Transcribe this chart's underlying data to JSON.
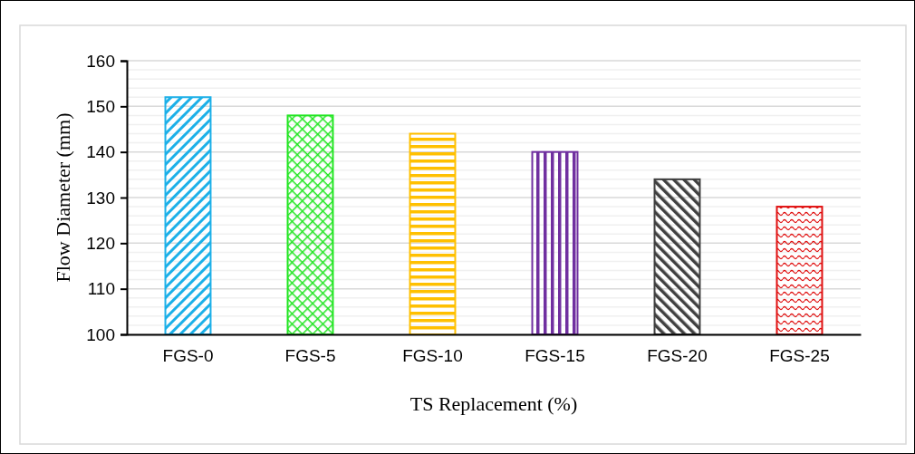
{
  "chart_data": {
    "type": "bar",
    "xlabel": "TS Replacement (%)",
    "ylabel": "Flow Diameter (mm)",
    "categories": [
      "FGS-0",
      "FGS-5",
      "FGS-10",
      "FGS-15",
      "FGS-20",
      "FGS-25"
    ],
    "values": [
      152,
      148,
      144,
      140,
      134,
      128
    ],
    "colors": [
      "#1cb0e8",
      "#22e622",
      "#ffc000",
      "#7030a0",
      "#404040",
      "#e01010"
    ],
    "ylim": [
      100,
      160
    ],
    "yticks": [
      100,
      {
        "value": 102,
        "label": null
      },
      {
        "value": 104,
        "label": null
      },
      {
        "value": 106,
        "label": null
      },
      {
        "value": 108,
        "label": null
      },
      110,
      {
        "value": 112,
        "label": null
      },
      {
        "value": 114,
        "label": null
      },
      {
        "value": 116,
        "label": null
      },
      {
        "value": 118,
        "label": null
      },
      120,
      {
        "value": 122,
        "label": null
      },
      {
        "value": 124,
        "label": null
      },
      {
        "value": 126,
        "label": null
      },
      {
        "value": 128,
        "label": null
      },
      130,
      {
        "value": 132,
        "label": null
      },
      {
        "value": 134,
        "label": null
      },
      {
        "value": 136,
        "label": null
      },
      {
        "value": 138,
        "label": null
      },
      140,
      {
        "value": 142,
        "label": null
      },
      {
        "value": 144,
        "label": null
      },
      {
        "value": 146,
        "label": null
      },
      {
        "value": 148,
        "label": null
      },
      150,
      {
        "value": 152,
        "label": null
      },
      {
        "value": 154,
        "label": null
      },
      {
        "value": 156,
        "label": null
      },
      {
        "value": 158,
        "label": null
      },
      160
    ],
    "grid": "y"
  }
}
